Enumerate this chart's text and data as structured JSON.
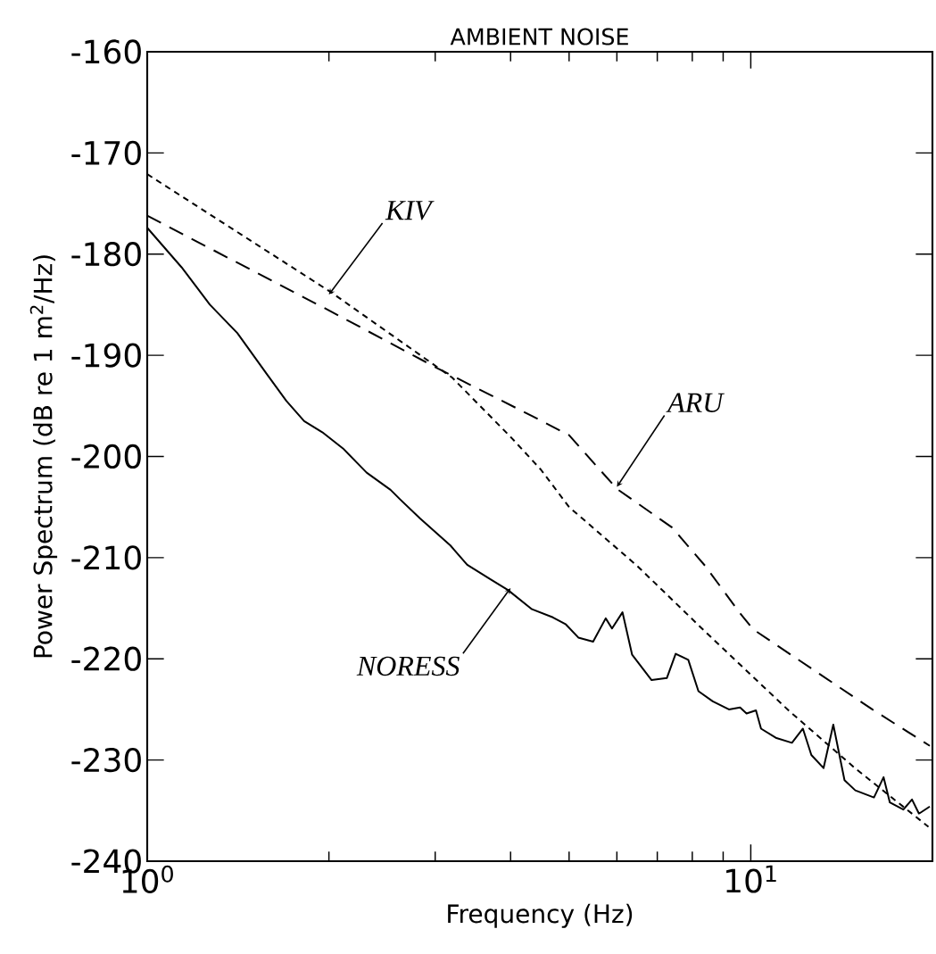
{
  "chart_data": {
    "type": "line",
    "title": "AMBIENT NOISE",
    "xlabel": "Frequency (Hz)",
    "ylabel": "Power Spectrum (dB re 1 m$^{2}$/Hz)",
    "log": "x",
    "marker": "none",
    "grid": false,
    "xlim": [
      1,
      20
    ],
    "ylim": [
      -240,
      -160
    ],
    "xticks": [
      {
        "value": 1,
        "label": "10$^{0}$"
      },
      {
        "value": 10,
        "label": "10$^{1}$"
      }
    ],
    "yticks": [
      -240,
      -230,
      -220,
      -210,
      -200,
      -190,
      -180,
      -170,
      -160
    ],
    "series": [
      {
        "color": "#000000",
        "line_style": "dotted",
        "x": [
          1,
          2.02,
          3.2,
          4.02,
          4.49,
          5.0,
          6.48,
          8.4,
          11.6,
          14.95,
          19.7
        ],
        "values": [
          -172.1,
          -183.8,
          -192.2,
          -198.2,
          -201.3,
          -205.0,
          -210.8,
          -217.3,
          -225.2,
          -230.9,
          -236.6
        ]
      },
      {
        "color": "#000000",
        "line_style": "dashed",
        "x": [
          1,
          2.02,
          3.03,
          4.34,
          5.0,
          6.0,
          7.4,
          8.4,
          9.6,
          10.1,
          15.9,
          19.8
        ],
        "values": [
          -176.2,
          -185.7,
          -191.3,
          -196.0,
          -197.9,
          -203.2,
          -207.0,
          -210.8,
          -215.5,
          -217.1,
          -225.0,
          -228.6
        ]
      },
      {
        "color": "#000000",
        "line_style": "solid",
        "x": [
          1,
          1.14,
          1.27,
          1.41,
          1.58,
          1.7,
          1.82,
          1.95,
          2.11,
          2.31,
          2.53,
          2.62,
          2.83,
          3.18,
          3.39,
          3.72,
          3.96,
          4.34,
          4.7,
          4.94,
          5.18,
          5.48,
          5.75,
          5.89,
          6.13,
          6.36,
          6.85,
          7.26,
          7.51,
          7.88,
          8.19,
          8.65,
          9.2,
          9.6,
          9.84,
          10.2,
          10.4,
          11.0,
          11.7,
          12.2,
          12.6,
          13.2,
          13.7,
          14.3,
          14.9,
          16.0,
          16.6,
          17.0,
          17.9,
          18.5,
          19.0,
          19.8
        ],
        "values": [
          -177.4,
          -181.3,
          -185.0,
          -187.8,
          -191.9,
          -194.5,
          -196.5,
          -197.6,
          -199.2,
          -201.6,
          -203.3,
          -204.2,
          -206.1,
          -208.8,
          -210.7,
          -212.2,
          -213.2,
          -215.1,
          -215.9,
          -216.6,
          -217.9,
          -218.3,
          -216.0,
          -217.0,
          -215.4,
          -219.6,
          -222.1,
          -221.9,
          -219.5,
          -220.1,
          -223.2,
          -224.2,
          -225.0,
          -224.8,
          -225.4,
          -225.1,
          -226.9,
          -227.8,
          -228.3,
          -226.9,
          -229.5,
          -230.8,
          -226.5,
          -232.0,
          -233.0,
          -233.7,
          -231.7,
          -234.2,
          -234.9,
          -233.9,
          -235.3,
          -234.6
        ]
      }
    ],
    "annotations": [
      {
        "text": "*KIV*",
        "x": 2.0,
        "y": -184
      },
      {
        "text": "*ARU*",
        "x": 6.0,
        "y": -203
      },
      {
        "text": "*NORESS*",
        "x": 4.0,
        "y": -213
      }
    ]
  }
}
